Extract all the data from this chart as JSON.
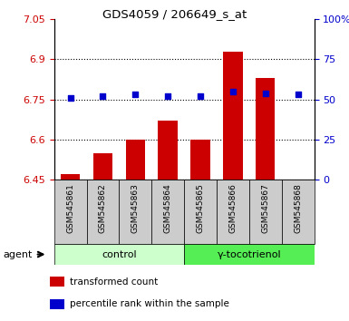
{
  "title": "GDS4059 / 206649_s_at",
  "samples": [
    "GSM545861",
    "GSM545862",
    "GSM545863",
    "GSM545864",
    "GSM545865",
    "GSM545866",
    "GSM545867",
    "GSM545868"
  ],
  "transformed_count": [
    6.47,
    6.55,
    6.6,
    6.67,
    6.6,
    6.93,
    6.83,
    6.45
  ],
  "percentile_rank": [
    51,
    52,
    53,
    52,
    52,
    55,
    54,
    53
  ],
  "ylim_left": [
    6.45,
    7.05
  ],
  "ylim_right": [
    0,
    100
  ],
  "yticks_left": [
    6.45,
    6.6,
    6.75,
    6.9,
    7.05
  ],
  "ytick_labels_left": [
    "6.45",
    "6.6",
    "6.75",
    "6.9",
    "7.05"
  ],
  "yticks_right": [
    0,
    25,
    50,
    75,
    100
  ],
  "ytick_labels_right": [
    "0",
    "25",
    "50",
    "75",
    "100%"
  ],
  "groups": [
    {
      "label": "control",
      "indices": [
        0,
        1,
        2,
        3
      ],
      "color": "#ccffcc",
      "edge_color": "#55cc55"
    },
    {
      "label": "γ-tocotrienol",
      "indices": [
        4,
        5,
        6,
        7
      ],
      "color": "#55ee55",
      "edge_color": "#33aa33"
    }
  ],
  "bar_color": "#cc0000",
  "dot_color": "#0000cc",
  "bar_bottom": 6.45,
  "agent_label": "agent",
  "legend_items": [
    {
      "color": "#cc0000",
      "label": "transformed count"
    },
    {
      "color": "#0000cc",
      "label": "percentile rank within the sample"
    }
  ],
  "grid_color": "black",
  "grid_style": "dotted",
  "background_color": "#ffffff",
  "tick_color_left": "#cc0000",
  "tick_color_right": "#0000cc",
  "sample_bg_color": "#cccccc",
  "sample_border_color": "#000000"
}
